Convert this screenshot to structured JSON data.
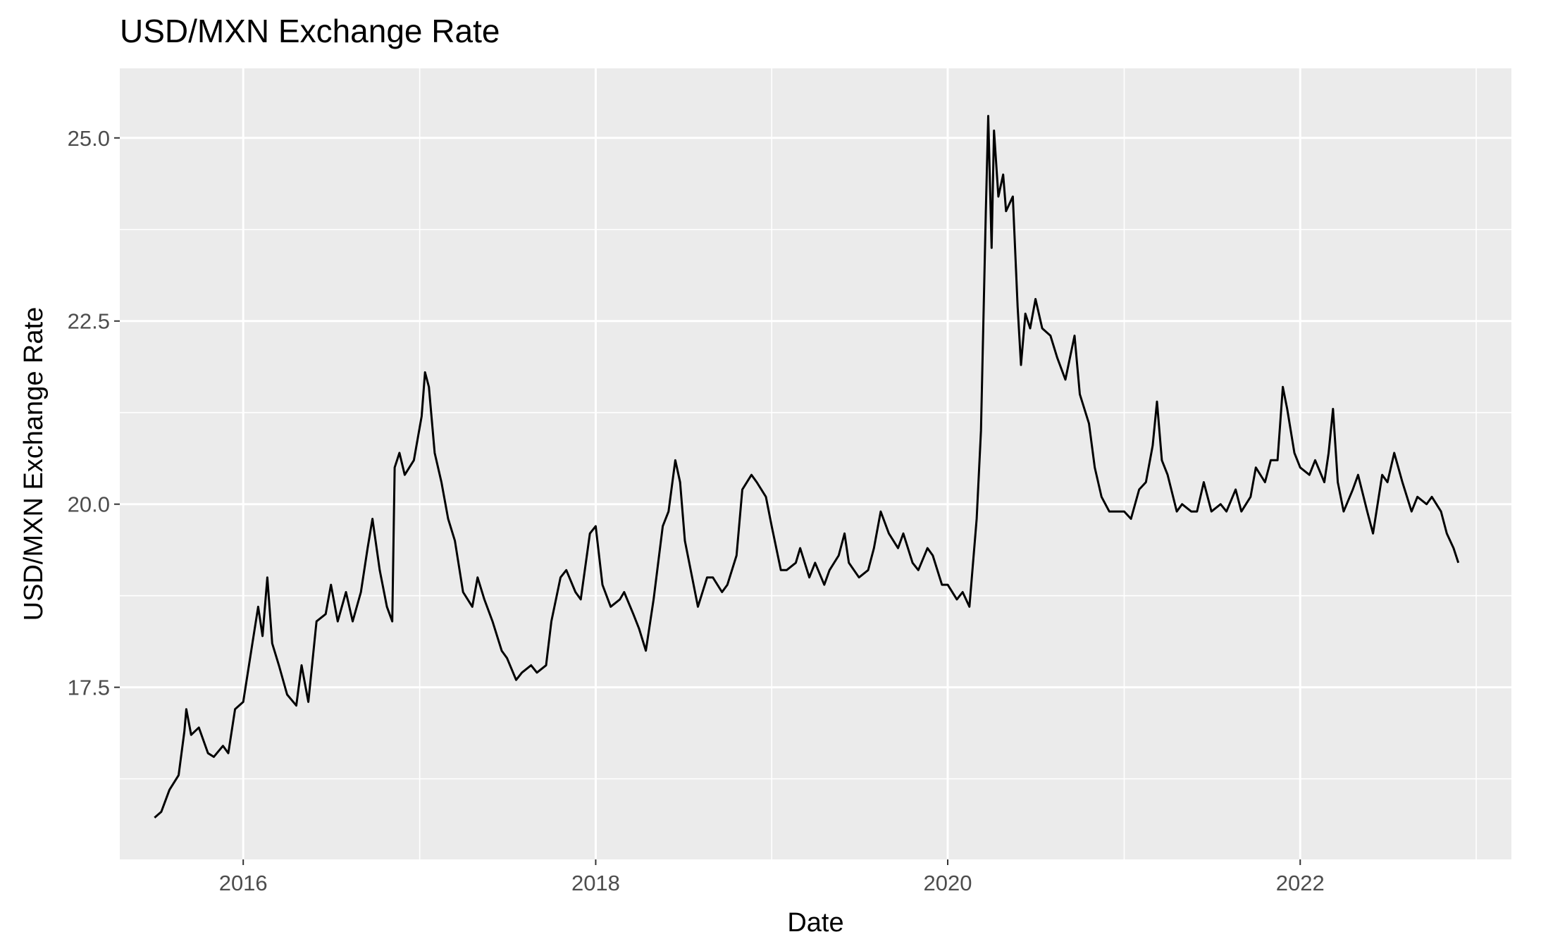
{
  "chart_data": {
    "type": "line",
    "title": "USD/MXN Exchange Rate",
    "xlabel": "Date",
    "ylabel": "USD/MXN Exchange Rate",
    "x_axis": "date",
    "xlim": [
      "2015-04-20",
      "2023-03-15"
    ],
    "ylim": [
      15.15,
      25.95
    ],
    "x_ticks": [
      {
        "value": "2016-01-01",
        "label": "2016"
      },
      {
        "value": "2018-01-01",
        "label": "2018"
      },
      {
        "value": "2020-01-01",
        "label": "2020"
      },
      {
        "value": "2022-01-01",
        "label": "2022"
      }
    ],
    "x_minor_ticks": [
      "2017-01-01",
      "2019-01-01",
      "2021-01-01",
      "2023-01-01"
    ],
    "y_ticks": [
      {
        "value": 17.5,
        "label": "17.5"
      },
      {
        "value": 20.0,
        "label": "20.0"
      },
      {
        "value": 22.5,
        "label": "22.5"
      },
      {
        "value": 25.0,
        "label": "25.0"
      }
    ],
    "y_minor_ticks": [
      16.25,
      18.75,
      21.25,
      23.75
    ],
    "grid": true,
    "panel_background": "#EBEBEB",
    "grid_color": "#FFFFFF",
    "line_color": "#000000",
    "series": [
      {
        "points": [
          {
            "x": "2015-07-01",
            "y": 15.72
          },
          {
            "x": "2015-07-15",
            "y": 15.8
          },
          {
            "x": "2015-08-01",
            "y": 16.1
          },
          {
            "x": "2015-08-20",
            "y": 16.3
          },
          {
            "x": "2015-09-01",
            "y": 16.9
          },
          {
            "x": "2015-09-05",
            "y": 17.2
          },
          {
            "x": "2015-09-15",
            "y": 16.85
          },
          {
            "x": "2015-10-01",
            "y": 16.95
          },
          {
            "x": "2015-10-20",
            "y": 16.6
          },
          {
            "x": "2015-11-01",
            "y": 16.55
          },
          {
            "x": "2015-11-20",
            "y": 16.7
          },
          {
            "x": "2015-12-01",
            "y": 16.6
          },
          {
            "x": "2015-12-15",
            "y": 17.2
          },
          {
            "x": "2016-01-01",
            "y": 17.3
          },
          {
            "x": "2016-01-20",
            "y": 18.1
          },
          {
            "x": "2016-02-01",
            "y": 18.6
          },
          {
            "x": "2016-02-10",
            "y": 18.2
          },
          {
            "x": "2016-02-20",
            "y": 19.0
          },
          {
            "x": "2016-03-01",
            "y": 18.1
          },
          {
            "x": "2016-03-15",
            "y": 17.8
          },
          {
            "x": "2016-04-01",
            "y": 17.4
          },
          {
            "x": "2016-04-20",
            "y": 17.25
          },
          {
            "x": "2016-05-01",
            "y": 17.8
          },
          {
            "x": "2016-05-15",
            "y": 17.3
          },
          {
            "x": "2016-06-01",
            "y": 18.4
          },
          {
            "x": "2016-06-20",
            "y": 18.5
          },
          {
            "x": "2016-07-01",
            "y": 18.9
          },
          {
            "x": "2016-07-15",
            "y": 18.4
          },
          {
            "x": "2016-08-01",
            "y": 18.8
          },
          {
            "x": "2016-08-15",
            "y": 18.4
          },
          {
            "x": "2016-09-01",
            "y": 18.8
          },
          {
            "x": "2016-09-15",
            "y": 19.4
          },
          {
            "x": "2016-09-25",
            "y": 19.8
          },
          {
            "x": "2016-10-10",
            "y": 19.1
          },
          {
            "x": "2016-10-25",
            "y": 18.6
          },
          {
            "x": "2016-11-05",
            "y": 18.4
          },
          {
            "x": "2016-11-10",
            "y": 20.5
          },
          {
            "x": "2016-11-20",
            "y": 20.7
          },
          {
            "x": "2016-12-01",
            "y": 20.4
          },
          {
            "x": "2016-12-20",
            "y": 20.6
          },
          {
            "x": "2017-01-05",
            "y": 21.2
          },
          {
            "x": "2017-01-12",
            "y": 21.8
          },
          {
            "x": "2017-01-20",
            "y": 21.6
          },
          {
            "x": "2017-02-01",
            "y": 20.7
          },
          {
            "x": "2017-02-15",
            "y": 20.3
          },
          {
            "x": "2017-03-01",
            "y": 19.8
          },
          {
            "x": "2017-03-15",
            "y": 19.5
          },
          {
            "x": "2017-04-01",
            "y": 18.8
          },
          {
            "x": "2017-04-20",
            "y": 18.6
          },
          {
            "x": "2017-05-01",
            "y": 19.0
          },
          {
            "x": "2017-05-15",
            "y": 18.7
          },
          {
            "x": "2017-06-01",
            "y": 18.4
          },
          {
            "x": "2017-06-20",
            "y": 18.0
          },
          {
            "x": "2017-07-01",
            "y": 17.9
          },
          {
            "x": "2017-07-20",
            "y": 17.6
          },
          {
            "x": "2017-08-01",
            "y": 17.7
          },
          {
            "x": "2017-08-20",
            "y": 17.8
          },
          {
            "x": "2017-09-01",
            "y": 17.7
          },
          {
            "x": "2017-09-20",
            "y": 17.8
          },
          {
            "x": "2017-10-01",
            "y": 18.4
          },
          {
            "x": "2017-10-20",
            "y": 19.0
          },
          {
            "x": "2017-11-01",
            "y": 19.1
          },
          {
            "x": "2017-11-20",
            "y": 18.8
          },
          {
            "x": "2017-12-01",
            "y": 18.7
          },
          {
            "x": "2017-12-20",
            "y": 19.6
          },
          {
            "x": "2018-01-01",
            "y": 19.7
          },
          {
            "x": "2018-01-15",
            "y": 18.9
          },
          {
            "x": "2018-02-01",
            "y": 18.6
          },
          {
            "x": "2018-02-20",
            "y": 18.7
          },
          {
            "x": "2018-03-01",
            "y": 18.8
          },
          {
            "x": "2018-03-20",
            "y": 18.5
          },
          {
            "x": "2018-04-01",
            "y": 18.3
          },
          {
            "x": "2018-04-15",
            "y": 18.0
          },
          {
            "x": "2018-05-01",
            "y": 18.7
          },
          {
            "x": "2018-05-20",
            "y": 19.7
          },
          {
            "x": "2018-06-01",
            "y": 19.9
          },
          {
            "x": "2018-06-15",
            "y": 20.6
          },
          {
            "x": "2018-06-25",
            "y": 20.3
          },
          {
            "x": "2018-07-05",
            "y": 19.5
          },
          {
            "x": "2018-07-20",
            "y": 19.0
          },
          {
            "x": "2018-08-01",
            "y": 18.6
          },
          {
            "x": "2018-08-20",
            "y": 19.0
          },
          {
            "x": "2018-09-01",
            "y": 19.0
          },
          {
            "x": "2018-09-20",
            "y": 18.8
          },
          {
            "x": "2018-10-01",
            "y": 18.9
          },
          {
            "x": "2018-10-20",
            "y": 19.3
          },
          {
            "x": "2018-11-01",
            "y": 20.2
          },
          {
            "x": "2018-11-20",
            "y": 20.4
          },
          {
            "x": "2018-12-01",
            "y": 20.3
          },
          {
            "x": "2018-12-20",
            "y": 20.1
          },
          {
            "x": "2019-01-01",
            "y": 19.7
          },
          {
            "x": "2019-01-20",
            "y": 19.1
          },
          {
            "x": "2019-02-01",
            "y": 19.1
          },
          {
            "x": "2019-02-20",
            "y": 19.2
          },
          {
            "x": "2019-03-01",
            "y": 19.4
          },
          {
            "x": "2019-03-20",
            "y": 19.0
          },
          {
            "x": "2019-04-01",
            "y": 19.2
          },
          {
            "x": "2019-04-20",
            "y": 18.9
          },
          {
            "x": "2019-05-01",
            "y": 19.1
          },
          {
            "x": "2019-05-20",
            "y": 19.3
          },
          {
            "x": "2019-06-01",
            "y": 19.6
          },
          {
            "x": "2019-06-10",
            "y": 19.2
          },
          {
            "x": "2019-07-01",
            "y": 19.0
          },
          {
            "x": "2019-07-20",
            "y": 19.1
          },
          {
            "x": "2019-08-01",
            "y": 19.4
          },
          {
            "x": "2019-08-15",
            "y": 19.9
          },
          {
            "x": "2019-09-01",
            "y": 19.6
          },
          {
            "x": "2019-09-20",
            "y": 19.4
          },
          {
            "x": "2019-10-01",
            "y": 19.6
          },
          {
            "x": "2019-10-20",
            "y": 19.2
          },
          {
            "x": "2019-11-01",
            "y": 19.1
          },
          {
            "x": "2019-11-20",
            "y": 19.4
          },
          {
            "x": "2019-12-01",
            "y": 19.3
          },
          {
            "x": "2019-12-20",
            "y": 18.9
          },
          {
            "x": "2020-01-01",
            "y": 18.9
          },
          {
            "x": "2020-01-20",
            "y": 18.7
          },
          {
            "x": "2020-02-01",
            "y": 18.8
          },
          {
            "x": "2020-02-15",
            "y": 18.6
          },
          {
            "x": "2020-03-01",
            "y": 19.8
          },
          {
            "x": "2020-03-10",
            "y": 21.0
          },
          {
            "x": "2020-03-20",
            "y": 24.0
          },
          {
            "x": "2020-03-25",
            "y": 25.3
          },
          {
            "x": "2020-04-01",
            "y": 23.5
          },
          {
            "x": "2020-04-06",
            "y": 25.1
          },
          {
            "x": "2020-04-15",
            "y": 24.2
          },
          {
            "x": "2020-04-25",
            "y": 24.5
          },
          {
            "x": "2020-05-01",
            "y": 24.0
          },
          {
            "x": "2020-05-15",
            "y": 24.2
          },
          {
            "x": "2020-05-25",
            "y": 22.7
          },
          {
            "x": "2020-06-01",
            "y": 21.9
          },
          {
            "x": "2020-06-10",
            "y": 22.6
          },
          {
            "x": "2020-06-20",
            "y": 22.4
          },
          {
            "x": "2020-07-01",
            "y": 22.8
          },
          {
            "x": "2020-07-15",
            "y": 22.4
          },
          {
            "x": "2020-08-01",
            "y": 22.3
          },
          {
            "x": "2020-08-15",
            "y": 22.0
          },
          {
            "x": "2020-09-01",
            "y": 21.7
          },
          {
            "x": "2020-09-20",
            "y": 22.3
          },
          {
            "x": "2020-10-01",
            "y": 21.5
          },
          {
            "x": "2020-10-20",
            "y": 21.1
          },
          {
            "x": "2020-11-01",
            "y": 20.5
          },
          {
            "x": "2020-11-15",
            "y": 20.1
          },
          {
            "x": "2020-12-01",
            "y": 19.9
          },
          {
            "x": "2020-12-20",
            "y": 19.9
          },
          {
            "x": "2021-01-01",
            "y": 19.9
          },
          {
            "x": "2021-01-15",
            "y": 19.8
          },
          {
            "x": "2021-02-01",
            "y": 20.2
          },
          {
            "x": "2021-02-15",
            "y": 20.3
          },
          {
            "x": "2021-03-01",
            "y": 20.8
          },
          {
            "x": "2021-03-10",
            "y": 21.4
          },
          {
            "x": "2021-03-20",
            "y": 20.6
          },
          {
            "x": "2021-04-01",
            "y": 20.4
          },
          {
            "x": "2021-04-20",
            "y": 19.9
          },
          {
            "x": "2021-05-01",
            "y": 20.0
          },
          {
            "x": "2021-05-20",
            "y": 19.9
          },
          {
            "x": "2021-06-01",
            "y": 19.9
          },
          {
            "x": "2021-06-15",
            "y": 20.3
          },
          {
            "x": "2021-07-01",
            "y": 19.9
          },
          {
            "x": "2021-07-20",
            "y": 20.0
          },
          {
            "x": "2021-08-01",
            "y": 19.9
          },
          {
            "x": "2021-08-20",
            "y": 20.2
          },
          {
            "x": "2021-09-01",
            "y": 19.9
          },
          {
            "x": "2021-09-20",
            "y": 20.1
          },
          {
            "x": "2021-10-01",
            "y": 20.5
          },
          {
            "x": "2021-10-20",
            "y": 20.3
          },
          {
            "x": "2021-11-01",
            "y": 20.6
          },
          {
            "x": "2021-11-15",
            "y": 20.6
          },
          {
            "x": "2021-11-26",
            "y": 21.6
          },
          {
            "x": "2021-12-05",
            "y": 21.3
          },
          {
            "x": "2021-12-20",
            "y": 20.7
          },
          {
            "x": "2022-01-01",
            "y": 20.5
          },
          {
            "x": "2022-01-20",
            "y": 20.4
          },
          {
            "x": "2022-02-01",
            "y": 20.6
          },
          {
            "x": "2022-02-20",
            "y": 20.3
          },
          {
            "x": "2022-03-01",
            "y": 20.7
          },
          {
            "x": "2022-03-10",
            "y": 21.3
          },
          {
            "x": "2022-03-20",
            "y": 20.3
          },
          {
            "x": "2022-04-01",
            "y": 19.9
          },
          {
            "x": "2022-04-20",
            "y": 20.2
          },
          {
            "x": "2022-05-01",
            "y": 20.4
          },
          {
            "x": "2022-05-20",
            "y": 19.9
          },
          {
            "x": "2022-06-01",
            "y": 19.6
          },
          {
            "x": "2022-06-20",
            "y": 20.4
          },
          {
            "x": "2022-07-01",
            "y": 20.3
          },
          {
            "x": "2022-07-15",
            "y": 20.7
          },
          {
            "x": "2022-08-01",
            "y": 20.3
          },
          {
            "x": "2022-08-20",
            "y": 19.9
          },
          {
            "x": "2022-09-01",
            "y": 20.1
          },
          {
            "x": "2022-09-20",
            "y": 20.0
          },
          {
            "x": "2022-10-01",
            "y": 20.1
          },
          {
            "x": "2022-10-20",
            "y": 19.9
          },
          {
            "x": "2022-11-01",
            "y": 19.6
          },
          {
            "x": "2022-11-15",
            "y": 19.4
          },
          {
            "x": "2022-11-25",
            "y": 19.2
          }
        ]
      }
    ]
  }
}
